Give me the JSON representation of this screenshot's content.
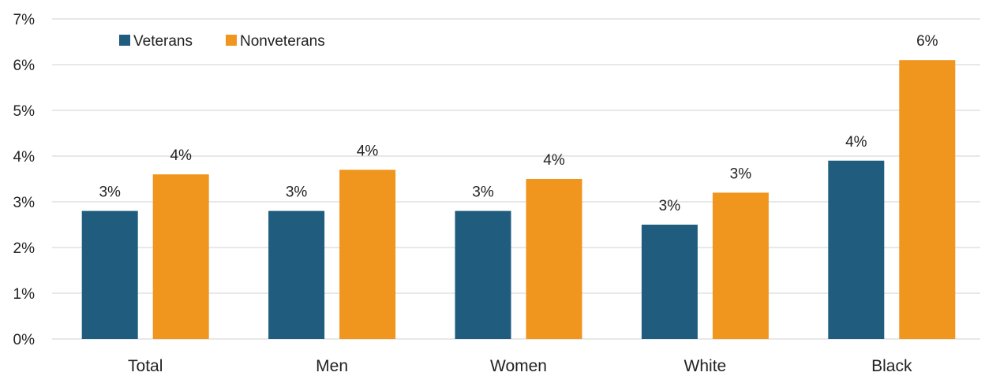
{
  "chart_data": {
    "type": "bar",
    "categories": [
      "Total",
      "Men",
      "Women",
      "White",
      "Black"
    ],
    "series": [
      {
        "name": "Veterans",
        "color": "#1f5c7e",
        "values": [
          2.8,
          2.8,
          2.8,
          2.5,
          3.9
        ],
        "labels": [
          "3%",
          "3%",
          "3%",
          "3%",
          "4%"
        ]
      },
      {
        "name": "Nonveterans",
        "color": "#f0951e",
        "values": [
          3.6,
          3.7,
          3.5,
          3.2,
          6.1
        ],
        "labels": [
          "4%",
          "4%",
          "4%",
          "3%",
          "6%"
        ]
      }
    ],
    "ylim": [
      0,
      7
    ],
    "yticks": [
      0,
      1,
      2,
      3,
      4,
      5,
      6,
      7
    ],
    "ytick_labels": [
      "0%",
      "1%",
      "2%",
      "3%",
      "4%",
      "5%",
      "6%",
      "7%"
    ],
    "grid": true,
    "legend_position": "top-left"
  }
}
